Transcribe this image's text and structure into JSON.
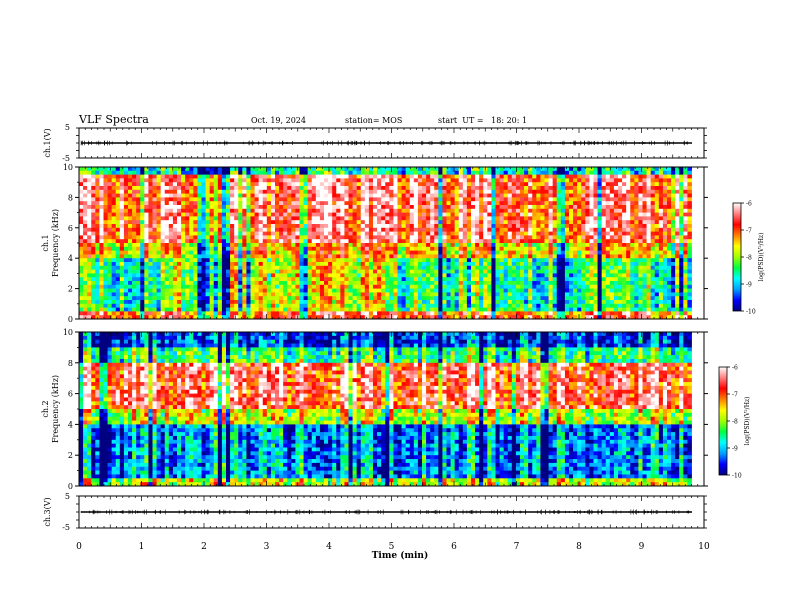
{
  "header": {
    "title": "VLF Spectra",
    "date": "Oct. 19, 2024",
    "station": "station= MOS",
    "start": "start  UT =   18: 20: 1"
  },
  "chart_data": [
    {
      "type": "line",
      "name_label": "ch.1(V)",
      "ylabel": "ch.1(V)",
      "ylim": [
        -5,
        5
      ],
      "yticks": [
        "5",
        "-5"
      ],
      "xlim": [
        0,
        10
      ],
      "level": 0
    },
    {
      "type": "heatmap",
      "ylabel": "ch.1\nFrequency (kHz)",
      "ylabel_lines": [
        "ch.1",
        "Frequency (kHz)"
      ],
      "ylim": [
        0,
        10
      ],
      "yticks": [
        "0",
        "2",
        "4",
        "6",
        "8",
        "10"
      ],
      "xlim": [
        0,
        10
      ],
      "data_end_min": 9.8,
      "colorbar": {
        "label": "log(PSD)(V²/Hz)",
        "range": [
          -10,
          -6
        ],
        "ticks": [
          "-6",
          "-7",
          "-8",
          "-9",
          "-10"
        ]
      },
      "profile_note": "high power 5-9 kHz, strong emissions 0-4 kHz"
    },
    {
      "type": "heatmap",
      "ylabel_lines": [
        "ch.2",
        "Frequency (kHz)"
      ],
      "ylim": [
        0,
        10
      ],
      "yticks": [
        "0",
        "2",
        "4",
        "6",
        "8",
        "10"
      ],
      "xlim": [
        0,
        10
      ],
      "data_end_min": 9.8,
      "colorbar": {
        "label": "log(PSD)(V²/Hz)",
        "range": [
          -10,
          -6
        ],
        "ticks": [
          "-6",
          "-7",
          "-8",
          "-9",
          "-10"
        ]
      }
    },
    {
      "type": "line",
      "ylabel": "ch.3(V)",
      "ylim": [
        -5,
        5
      ],
      "yticks": [
        "5",
        "-5"
      ],
      "xlim": [
        0,
        10
      ],
      "level": 0
    }
  ],
  "xaxis": {
    "label": "Time (min)",
    "ticks": [
      "0",
      "1",
      "2",
      "3",
      "4",
      "5",
      "6",
      "7",
      "8",
      "9",
      "10"
    ]
  },
  "colors": {
    "jet_stops": [
      "#000080",
      "#0000ff",
      "#00a0ff",
      "#00ffff",
      "#00ff40",
      "#a0ff00",
      "#ffff00",
      "#ff8000",
      "#ff0000",
      "#ff8080",
      "#ffffff"
    ]
  }
}
